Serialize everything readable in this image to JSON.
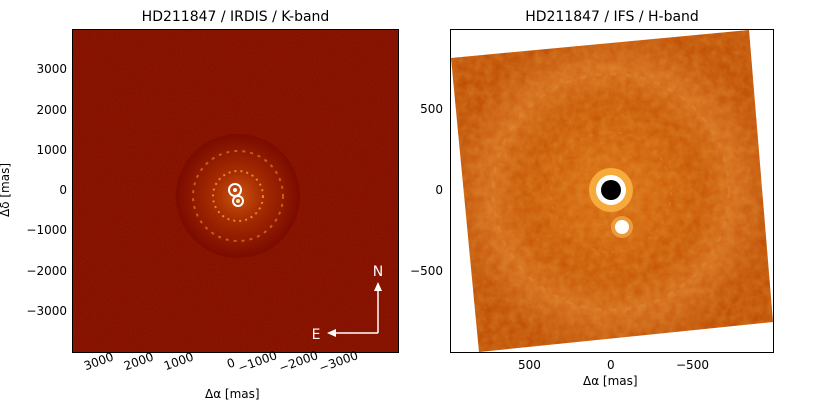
{
  "left_panel": {
    "title": "HD211847 / IRDIS / K-band",
    "xlabel": "Δα [mas]",
    "ylabel": "Δδ [mas]",
    "x_ticks": [
      "3000",
      "2000",
      "1000",
      "0",
      "−1000",
      "−2000",
      "−3000"
    ],
    "y_ticks": [
      "3000",
      "2000",
      "1000",
      "0",
      "−1000",
      "−2000",
      "−3000"
    ],
    "compass": {
      "north": "N",
      "east": "E"
    },
    "colors": {
      "background": "#7a0a00",
      "halo": "#b53a00",
      "bright": "#ffe080"
    }
  },
  "right_panel": {
    "title": "HD211847 / IFS / H-band",
    "xlabel": "Δα [mas]",
    "x_ticks": [
      "500",
      "0",
      "−500"
    ],
    "y_ticks": [
      "500",
      "0",
      "−500"
    ],
    "colors": {
      "background": "#c04a00",
      "ring": "#d86a10",
      "bright": "#ffffff",
      "core": "#000000"
    }
  }
}
